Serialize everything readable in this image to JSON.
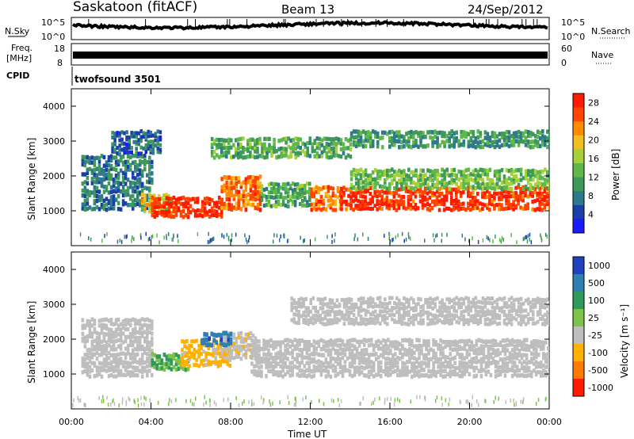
{
  "header": {
    "title": "Saskatoon (fitACF)",
    "beam": "Beam 13",
    "date": "24/Sep/2012"
  },
  "scan_panels": {
    "nsky_label": "N.Sky",
    "nsky_ticks": [
      "10^5",
      "10^0"
    ],
    "nsearch_label": "N.Search",
    "nsearch_ticks": [
      "10^5",
      "10^0"
    ],
    "freq_label": "Freq.",
    "freq_unit": "[MHz]",
    "freq_ticks": [
      "18",
      "8"
    ],
    "nave_label": "Nave",
    "nave_ticks": [
      "60",
      "0"
    ],
    "cpid_label": "CPID",
    "cpid_value": "twofsound 3501"
  },
  "axes": {
    "x_ticks": [
      "00:00",
      "04:00",
      "08:00",
      "12:00",
      "16:00",
      "20:00",
      "00:00"
    ],
    "x_label": "Time UT",
    "y_label": "Slant Range [km]",
    "y_ticks": [
      "1000",
      "2000",
      "3000",
      "4000"
    ]
  },
  "colors": {
    "power_scale": [
      "#1a1aff",
      "#1a3fa8",
      "#2f7a8a",
      "#3f9a5a",
      "#5fb84a",
      "#a6d13a",
      "#f0c020",
      "#ff8c00",
      "#ff4500",
      "#ff1a00"
    ],
    "velocity_scale": [
      "#2040c0",
      "#2f7fb0",
      "#2f9a5a",
      "#7cc34a",
      "#bebebe",
      "#ffb000",
      "#ff7a00",
      "#ff1a00"
    ],
    "ground_scatter": "#bebebe"
  },
  "chart_data": [
    {
      "type": "heatmap",
      "panel": "power",
      "x_range_hours": [
        0,
        24
      ],
      "y_range_km": [
        0,
        4500
      ],
      "colorbar_label": "Power [dB]",
      "colorbar_ticks": [
        "4",
        "8",
        "12",
        "16",
        "20",
        "24",
        "28"
      ],
      "colorbar_range": [
        0,
        30
      ],
      "bands": [
        {
          "t": [
            0.5,
            4.0
          ],
          "r": [
            1000,
            2600
          ],
          "value": 8
        },
        {
          "t": [
            3.5,
            5.0
          ],
          "r": [
            900,
            1500
          ],
          "value": 18
        },
        {
          "t": [
            4.0,
            7.5
          ],
          "r": [
            800,
            1400
          ],
          "value": 28
        },
        {
          "t": [
            7.5,
            9.5
          ],
          "r": [
            1000,
            2000
          ],
          "value": 24
        },
        {
          "t": [
            9.5,
            12.0
          ],
          "r": [
            1100,
            1800
          ],
          "value": 12
        },
        {
          "t": [
            12.0,
            13.5
          ],
          "r": [
            1000,
            1700
          ],
          "value": 24
        },
        {
          "t": [
            13.5,
            24.0
          ],
          "r": [
            1000,
            1700
          ],
          "value": 27
        },
        {
          "t": [
            14.0,
            24.0
          ],
          "r": [
            1600,
            2200
          ],
          "value": 14
        },
        {
          "t": [
            7.0,
            14.0
          ],
          "r": [
            2500,
            3100
          ],
          "value": 12
        },
        {
          "t": [
            14.0,
            24.0
          ],
          "r": [
            2800,
            3300
          ],
          "value": 10
        },
        {
          "t": [
            2.0,
            4.5
          ],
          "r": [
            2600,
            3300
          ],
          "value": 6
        }
      ]
    },
    {
      "type": "heatmap",
      "panel": "velocity",
      "x_range_hours": [
        0,
        24
      ],
      "y_range_km": [
        0,
        4500
      ],
      "colorbar_label": "Velocity [m s⁻¹]",
      "colorbar_ticks": [
        "1000",
        "500",
        "100",
        "25",
        "-25",
        "-100",
        "-500",
        "-1000"
      ],
      "colorbar_range": [
        -1200,
        1200
      ],
      "bands": [
        {
          "t": [
            0.5,
            4.0
          ],
          "r": [
            900,
            2600
          ],
          "value": 0,
          "ground": true
        },
        {
          "t": [
            4.0,
            6.0
          ],
          "r": [
            1100,
            1600
          ],
          "value": 300
        },
        {
          "t": [
            5.5,
            8.0
          ],
          "r": [
            1200,
            2000
          ],
          "value": -400
        },
        {
          "t": [
            7.5,
            9.2
          ],
          "r": [
            1400,
            2200
          ],
          "value": -200
        },
        {
          "t": [
            6.5,
            8.0
          ],
          "r": [
            1800,
            2200
          ],
          "value": 800
        },
        {
          "t": [
            9.0,
            24.0
          ],
          "r": [
            900,
            2000
          ],
          "value": 0,
          "ground": true
        },
        {
          "t": [
            11.0,
            24.0
          ],
          "r": [
            2400,
            3200
          ],
          "value": 0,
          "ground": true
        }
      ]
    }
  ]
}
